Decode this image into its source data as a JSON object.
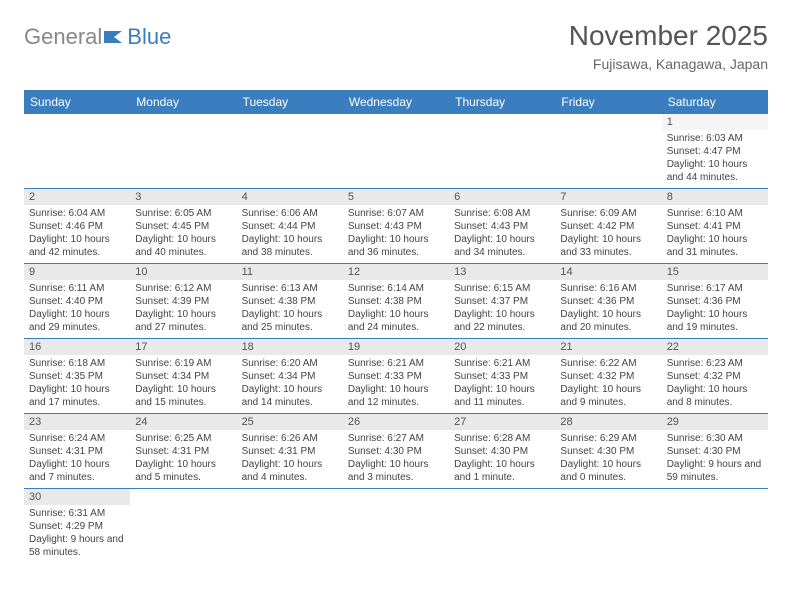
{
  "logo": {
    "part1": "General",
    "part2": "Blue"
  },
  "title": "November 2025",
  "location": "Fujisawa, Kanagawa, Japan",
  "colors": {
    "header_bg": "#3a7ebf",
    "header_text": "#ffffff",
    "daynum_bg": "#e9e9e9",
    "row_border": "#3a7ebf",
    "text": "#444444"
  },
  "weekdays": [
    "Sunday",
    "Monday",
    "Tuesday",
    "Wednesday",
    "Thursday",
    "Friday",
    "Saturday"
  ],
  "weeks": [
    [
      null,
      null,
      null,
      null,
      null,
      null,
      {
        "num": "1",
        "sunrise": "Sunrise: 6:03 AM",
        "sunset": "Sunset: 4:47 PM",
        "daylight": "Daylight: 10 hours and 44 minutes."
      }
    ],
    [
      {
        "num": "2",
        "sunrise": "Sunrise: 6:04 AM",
        "sunset": "Sunset: 4:46 PM",
        "daylight": "Daylight: 10 hours and 42 minutes."
      },
      {
        "num": "3",
        "sunrise": "Sunrise: 6:05 AM",
        "sunset": "Sunset: 4:45 PM",
        "daylight": "Daylight: 10 hours and 40 minutes."
      },
      {
        "num": "4",
        "sunrise": "Sunrise: 6:06 AM",
        "sunset": "Sunset: 4:44 PM",
        "daylight": "Daylight: 10 hours and 38 minutes."
      },
      {
        "num": "5",
        "sunrise": "Sunrise: 6:07 AM",
        "sunset": "Sunset: 4:43 PM",
        "daylight": "Daylight: 10 hours and 36 minutes."
      },
      {
        "num": "6",
        "sunrise": "Sunrise: 6:08 AM",
        "sunset": "Sunset: 4:43 PM",
        "daylight": "Daylight: 10 hours and 34 minutes."
      },
      {
        "num": "7",
        "sunrise": "Sunrise: 6:09 AM",
        "sunset": "Sunset: 4:42 PM",
        "daylight": "Daylight: 10 hours and 33 minutes."
      },
      {
        "num": "8",
        "sunrise": "Sunrise: 6:10 AM",
        "sunset": "Sunset: 4:41 PM",
        "daylight": "Daylight: 10 hours and 31 minutes."
      }
    ],
    [
      {
        "num": "9",
        "sunrise": "Sunrise: 6:11 AM",
        "sunset": "Sunset: 4:40 PM",
        "daylight": "Daylight: 10 hours and 29 minutes."
      },
      {
        "num": "10",
        "sunrise": "Sunrise: 6:12 AM",
        "sunset": "Sunset: 4:39 PM",
        "daylight": "Daylight: 10 hours and 27 minutes."
      },
      {
        "num": "11",
        "sunrise": "Sunrise: 6:13 AM",
        "sunset": "Sunset: 4:38 PM",
        "daylight": "Daylight: 10 hours and 25 minutes."
      },
      {
        "num": "12",
        "sunrise": "Sunrise: 6:14 AM",
        "sunset": "Sunset: 4:38 PM",
        "daylight": "Daylight: 10 hours and 24 minutes."
      },
      {
        "num": "13",
        "sunrise": "Sunrise: 6:15 AM",
        "sunset": "Sunset: 4:37 PM",
        "daylight": "Daylight: 10 hours and 22 minutes."
      },
      {
        "num": "14",
        "sunrise": "Sunrise: 6:16 AM",
        "sunset": "Sunset: 4:36 PM",
        "daylight": "Daylight: 10 hours and 20 minutes."
      },
      {
        "num": "15",
        "sunrise": "Sunrise: 6:17 AM",
        "sunset": "Sunset: 4:36 PM",
        "daylight": "Daylight: 10 hours and 19 minutes."
      }
    ],
    [
      {
        "num": "16",
        "sunrise": "Sunrise: 6:18 AM",
        "sunset": "Sunset: 4:35 PM",
        "daylight": "Daylight: 10 hours and 17 minutes."
      },
      {
        "num": "17",
        "sunrise": "Sunrise: 6:19 AM",
        "sunset": "Sunset: 4:34 PM",
        "daylight": "Daylight: 10 hours and 15 minutes."
      },
      {
        "num": "18",
        "sunrise": "Sunrise: 6:20 AM",
        "sunset": "Sunset: 4:34 PM",
        "daylight": "Daylight: 10 hours and 14 minutes."
      },
      {
        "num": "19",
        "sunrise": "Sunrise: 6:21 AM",
        "sunset": "Sunset: 4:33 PM",
        "daylight": "Daylight: 10 hours and 12 minutes."
      },
      {
        "num": "20",
        "sunrise": "Sunrise: 6:21 AM",
        "sunset": "Sunset: 4:33 PM",
        "daylight": "Daylight: 10 hours and 11 minutes."
      },
      {
        "num": "21",
        "sunrise": "Sunrise: 6:22 AM",
        "sunset": "Sunset: 4:32 PM",
        "daylight": "Daylight: 10 hours and 9 minutes."
      },
      {
        "num": "22",
        "sunrise": "Sunrise: 6:23 AM",
        "sunset": "Sunset: 4:32 PM",
        "daylight": "Daylight: 10 hours and 8 minutes."
      }
    ],
    [
      {
        "num": "23",
        "sunrise": "Sunrise: 6:24 AM",
        "sunset": "Sunset: 4:31 PM",
        "daylight": "Daylight: 10 hours and 7 minutes."
      },
      {
        "num": "24",
        "sunrise": "Sunrise: 6:25 AM",
        "sunset": "Sunset: 4:31 PM",
        "daylight": "Daylight: 10 hours and 5 minutes."
      },
      {
        "num": "25",
        "sunrise": "Sunrise: 6:26 AM",
        "sunset": "Sunset: 4:31 PM",
        "daylight": "Daylight: 10 hours and 4 minutes."
      },
      {
        "num": "26",
        "sunrise": "Sunrise: 6:27 AM",
        "sunset": "Sunset: 4:30 PM",
        "daylight": "Daylight: 10 hours and 3 minutes."
      },
      {
        "num": "27",
        "sunrise": "Sunrise: 6:28 AM",
        "sunset": "Sunset: 4:30 PM",
        "daylight": "Daylight: 10 hours and 1 minute."
      },
      {
        "num": "28",
        "sunrise": "Sunrise: 6:29 AM",
        "sunset": "Sunset: 4:30 PM",
        "daylight": "Daylight: 10 hours and 0 minutes."
      },
      {
        "num": "29",
        "sunrise": "Sunrise: 6:30 AM",
        "sunset": "Sunset: 4:30 PM",
        "daylight": "Daylight: 9 hours and 59 minutes."
      }
    ],
    [
      {
        "num": "30",
        "sunrise": "Sunrise: 6:31 AM",
        "sunset": "Sunset: 4:29 PM",
        "daylight": "Daylight: 9 hours and 58 minutes."
      },
      null,
      null,
      null,
      null,
      null,
      null
    ]
  ]
}
